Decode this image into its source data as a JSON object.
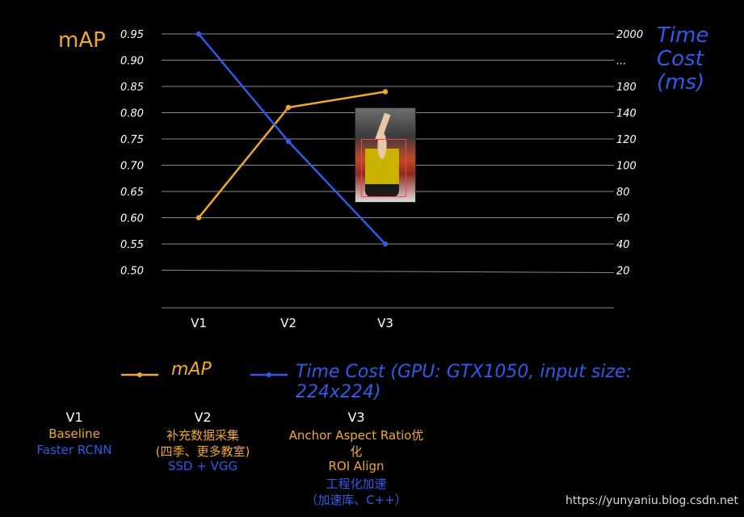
{
  "chart_data": {
    "type": "line",
    "categories": [
      "V1",
      "V2",
      "V3"
    ],
    "left_axis": {
      "title": "mAP",
      "ticks": [
        "0.95",
        "0.90",
        "0.85",
        "0.80",
        "0.75",
        "0.70",
        "0.65",
        "0.60",
        "0.55",
        "0.50"
      ],
      "ylim": [
        0.45,
        0.95
      ]
    },
    "right_axis": {
      "title_lines": [
        "Time",
        "Cost",
        "(ms)"
      ],
      "ticks": [
        "2000",
        "...",
        "180",
        "140",
        "120",
        "100",
        "80",
        "60",
        "40",
        "20"
      ]
    },
    "series": [
      {
        "name": "mAP",
        "color": "#f0a92e",
        "axis": "left",
        "values": [
          0.6,
          0.81,
          0.84
        ]
      },
      {
        "name": "Time Cost (GPU: GTX1050, input size: 224x224)",
        "color": "#2f5bea",
        "axis": "right",
        "values": [
          2000,
          120,
          40
        ]
      }
    ],
    "legend": [
      {
        "label": "mAP",
        "color": "#f0a92e"
      },
      {
        "label_lines": [
          "Time Cost (GPU: GTX1050, input size:",
          "224x224)"
        ],
        "color": "#2f5bea"
      }
    ],
    "grid": true
  },
  "versions": [
    {
      "title": "V1",
      "lines": [
        {
          "text": "Baseline",
          "color": "#f0a92e"
        },
        {
          "text": "Faster RCNN",
          "color": "#2f5bea"
        }
      ]
    },
    {
      "title": "V2",
      "lines": [
        {
          "text": "补充数据采集",
          "color": "#f0a92e"
        },
        {
          "text": "(四季、更多教室)",
          "color": "#f0a92e"
        },
        {
          "text": "SSD + VGG",
          "color": "#2f5bea"
        }
      ]
    },
    {
      "title": "V3",
      "lines": [
        {
          "text": "Anchor Aspect Ratio优",
          "color": "#f0a92e"
        },
        {
          "text": "化",
          "color": "#f0a92e"
        },
        {
          "text": "ROI Align",
          "color": "#f0a92e"
        },
        {
          "text": "工程化加速",
          "color": "#2f5bea"
        },
        {
          "text": "（加速库、C++）",
          "color": "#2f5bea"
        }
      ]
    }
  ],
  "watermark": "https://yunyaniu.blog.csdn.net"
}
